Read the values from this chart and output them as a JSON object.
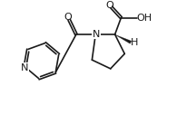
{
  "bg_color": "#ffffff",
  "line_color": "#1a1a1a",
  "line_width": 1.2,
  "font_size": 7.2,
  "atoms": {
    "N_label": "N",
    "O_carbonyl": "O",
    "O_acid1": "O",
    "OH_acid": "OH",
    "H_stereo": "H",
    "N_pyridine": "N"
  },
  "xlim": [
    0,
    9.5
  ],
  "ylim": [
    0,
    6.2
  ]
}
